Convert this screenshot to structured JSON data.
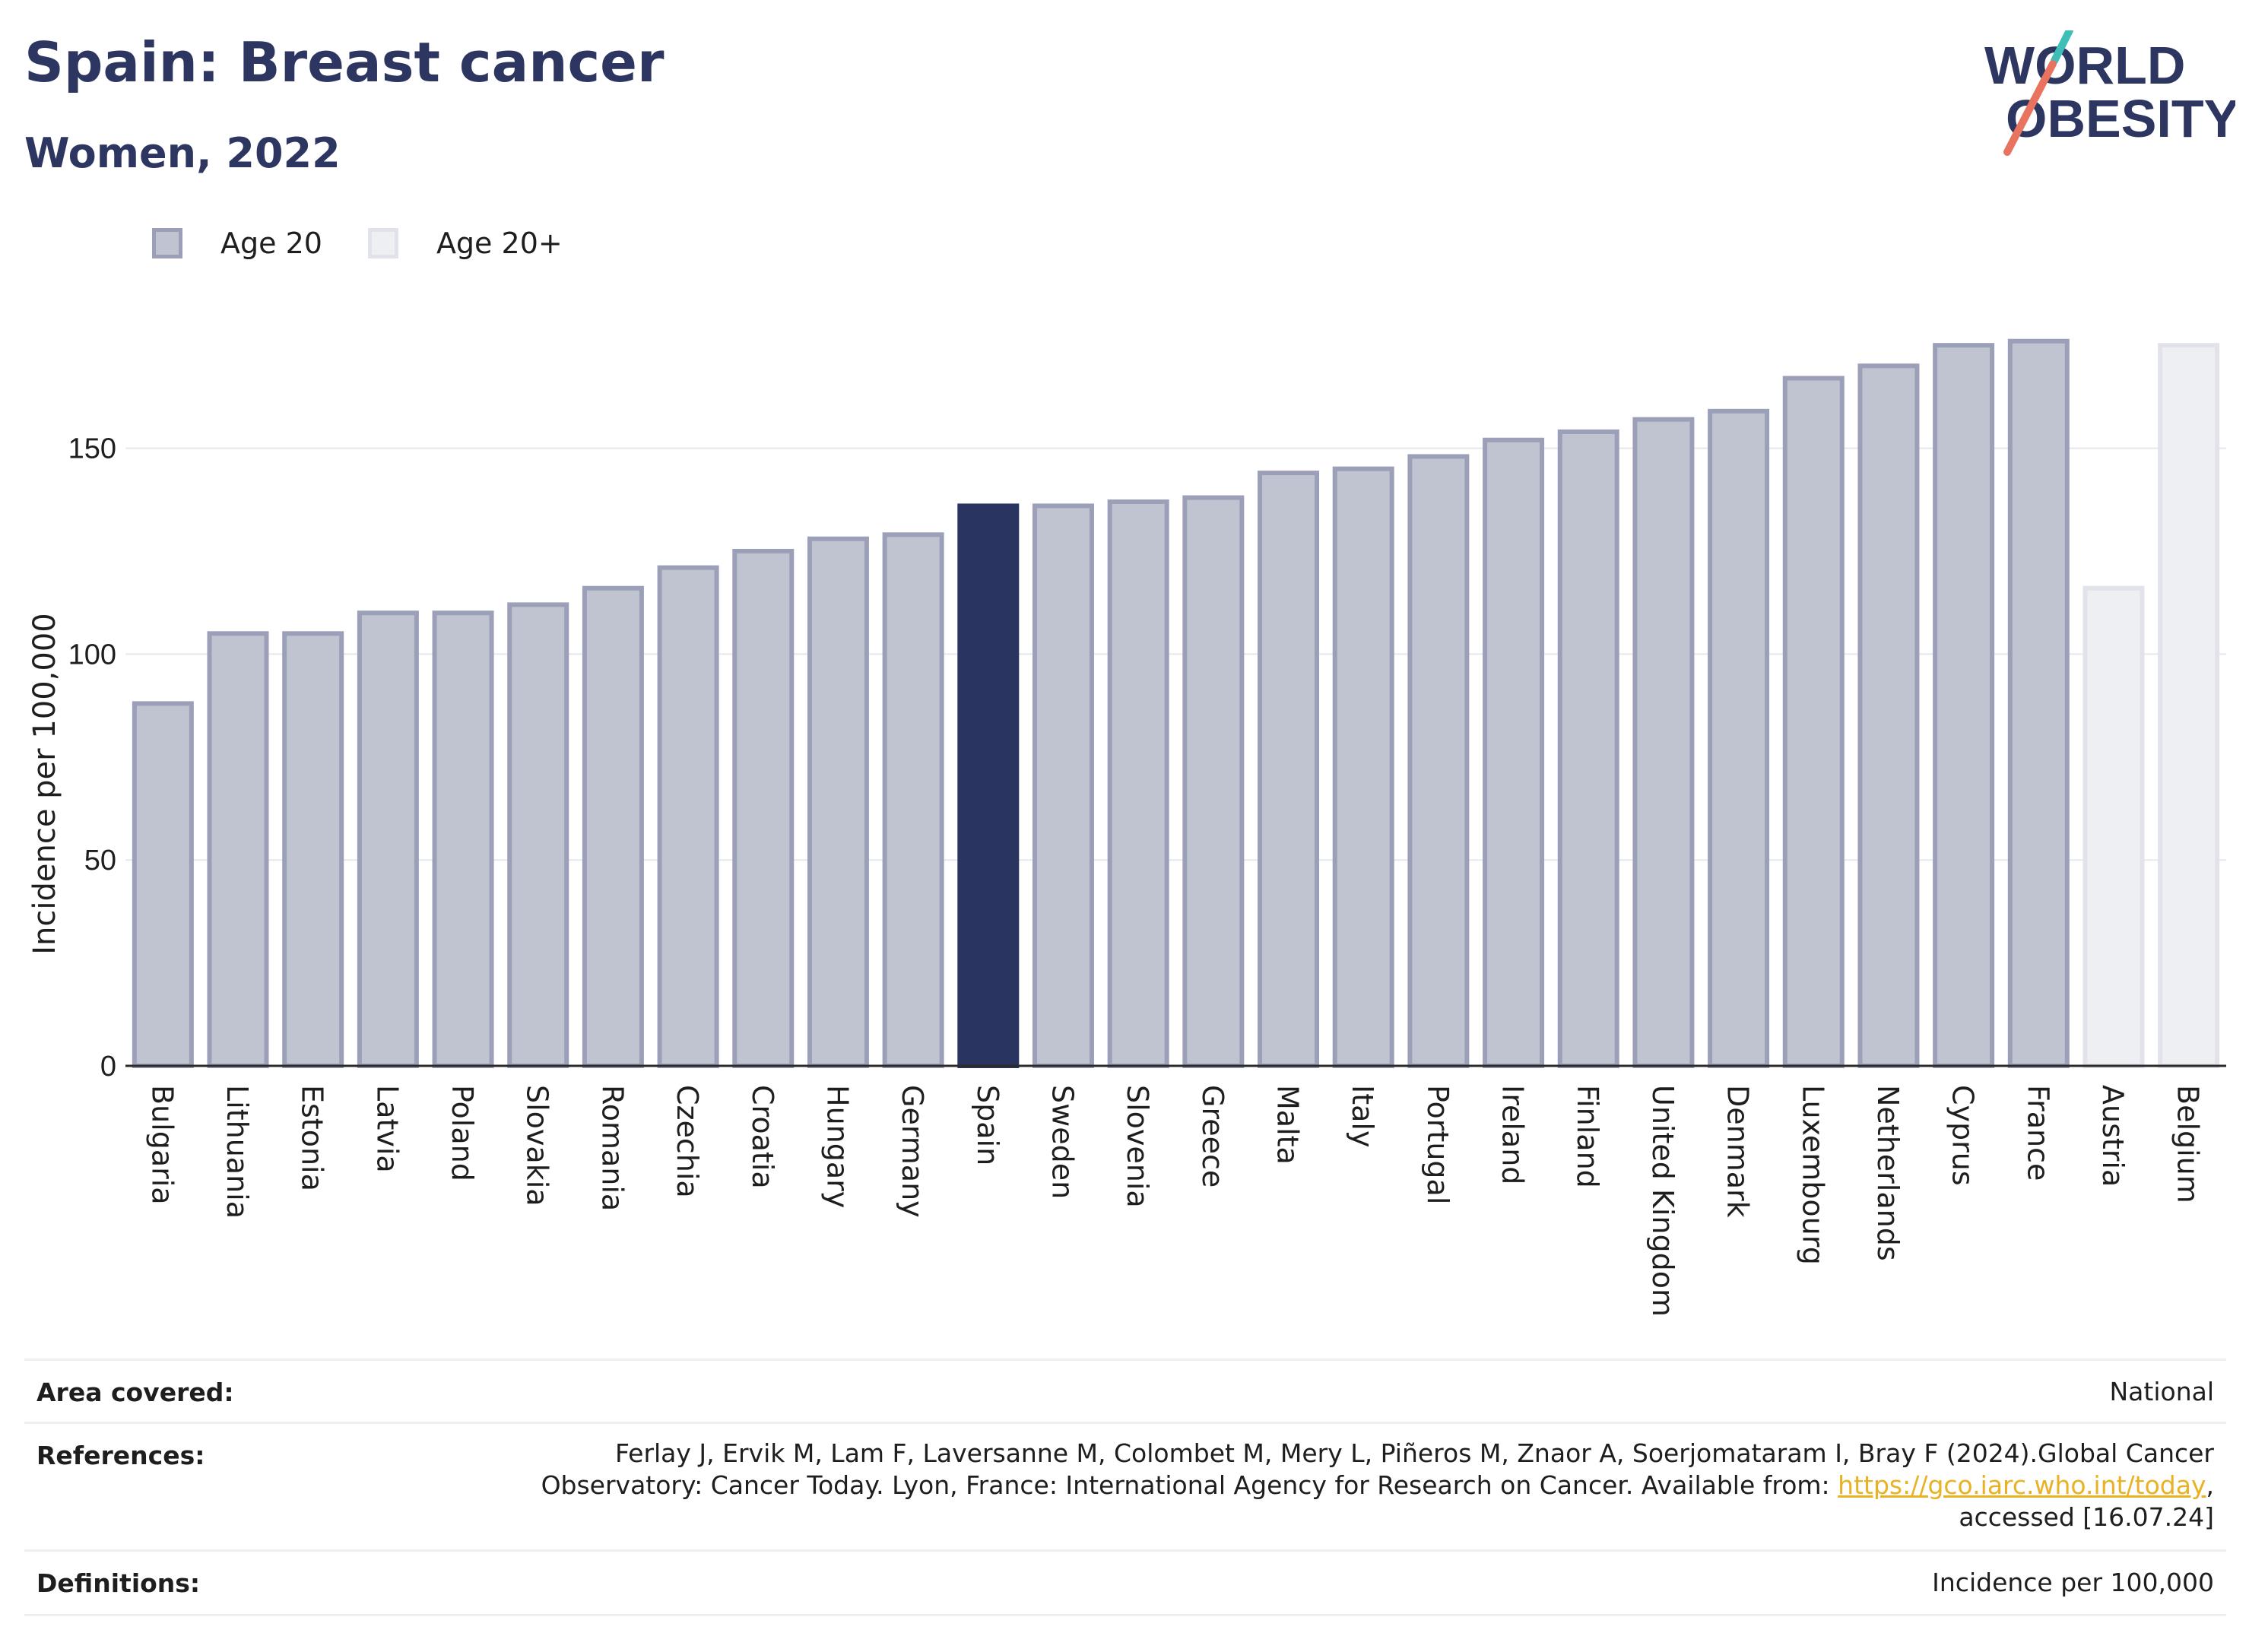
{
  "header": {
    "title": "Spain: Breast cancer",
    "subtitle": "Women, 2022"
  },
  "logo": {
    "line1": "WORLD",
    "line2": "OBESITY",
    "colors": {
      "text": "#2d3561",
      "slash_teal": "#3dbfb8",
      "slash_coral": "#e8735f"
    }
  },
  "legend": {
    "items": [
      {
        "label": "Age 20",
        "color": "#c0c3d0"
      },
      {
        "label": "Age 20+",
        "color": "#eeeff3"
      }
    ]
  },
  "chart_data": {
    "type": "bar",
    "ylabel": "Incidence per 100,000",
    "ylim": [
      0,
      185
    ],
    "yticks": [
      0,
      50,
      100,
      150
    ],
    "grid": true,
    "colors": {
      "age20": "#c0c3d0",
      "age20_border": "#9ba0b8",
      "age20plus": "#eeeff3",
      "age20plus_border": "#e2e3ea",
      "highlight": "#2a3461"
    },
    "highlight": "Spain",
    "categories": [
      "Bulgaria",
      "Lithuania",
      "Estonia",
      "Latvia",
      "Poland",
      "Slovakia",
      "Romania",
      "Czechia",
      "Croatia",
      "Hungary",
      "Germany",
      "Spain",
      "Sweden",
      "Slovenia",
      "Greece",
      "Malta",
      "Italy",
      "Portugal",
      "Ireland",
      "Finland",
      "United Kingdom",
      "Denmark",
      "Luxembourg",
      "Netherlands",
      "Cyprus",
      "France",
      "Austria",
      "Belgium"
    ],
    "series": [
      {
        "name": "Age 20",
        "values": [
          88,
          105,
          105,
          110,
          110,
          112,
          116,
          121,
          125,
          128,
          129,
          136,
          136,
          137,
          138,
          144,
          145,
          148,
          152,
          154,
          157,
          159,
          167,
          170,
          175,
          176,
          null,
          null
        ]
      },
      {
        "name": "Age 20+",
        "values": [
          null,
          null,
          null,
          null,
          null,
          null,
          null,
          null,
          null,
          null,
          null,
          null,
          null,
          null,
          null,
          null,
          null,
          null,
          null,
          null,
          null,
          null,
          null,
          null,
          null,
          null,
          116,
          175
        ]
      }
    ]
  },
  "info": {
    "area_label": "Area covered:",
    "area_value": "National",
    "references_label": "References:",
    "references_line1": "Ferlay J, Ervik M, Lam F, Laversanne M, Colombet M, Mery L, Piñeros M, Znaor A, Soerjomataram I, Bray F (2024).Global Cancer",
    "references_line2_prefix": "Observatory: Cancer Today. Lyon, France: International Agency for Research on Cancer. Available from: ",
    "references_link": "https://gco.iarc.who.int/today",
    "references_line2_suffix": ",",
    "references_line3": "accessed [16.07.24]",
    "definitions_label": "Definitions:",
    "definitions_value": "Incidence per 100,000"
  }
}
